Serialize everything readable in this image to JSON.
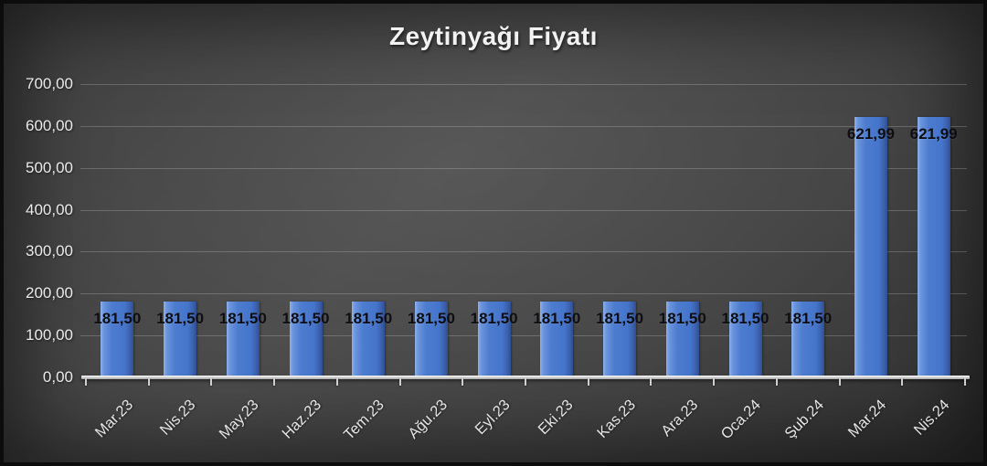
{
  "chart_data": {
    "type": "bar",
    "title": "Zeytinyağı Fiyatı",
    "categories": [
      "Mar.23",
      "Nis.23",
      "May.23",
      "Haz.23",
      "Tem.23",
      "Ağu.23",
      "Eyl.23",
      "Eki.23",
      "Kas.23",
      "Ara.23",
      "Oca.24",
      "Şub.24",
      "Mar.24",
      "Nis.24"
    ],
    "values": [
      181.5,
      181.5,
      181.5,
      181.5,
      181.5,
      181.5,
      181.5,
      181.5,
      181.5,
      181.5,
      181.5,
      181.5,
      621.99,
      621.99
    ],
    "value_labels": [
      "181,50",
      "181,50",
      "181,50",
      "181,50",
      "181,50",
      "181,50",
      "181,50",
      "181,50",
      "181,50",
      "181,50",
      "181,50",
      "181,50",
      "621,99",
      "621,99"
    ],
    "xlabel": "",
    "ylabel": "",
    "ylim": [
      0,
      700
    ],
    "ytick_step": 100,
    "ytick_labels": [
      "0,00",
      "100,00",
      "200,00",
      "300,00",
      "400,00",
      "500,00",
      "600,00",
      "700,00"
    ],
    "grid": true,
    "legend": "none",
    "colors": {
      "bar_main": "#4a78cc",
      "bar_light_edge": "#8db1ea",
      "bar_dark_edge": "#2e4e90",
      "background_dark": "#2e2e2e",
      "background_light": "#4a4a4a",
      "title_text": "#f2f2f2",
      "axis_text": "#eaeaea",
      "data_label_text": "#0d0d12",
      "gridline": "rgba(255,255,255,0.20)",
      "axis_line": "#c8c8c8"
    }
  }
}
